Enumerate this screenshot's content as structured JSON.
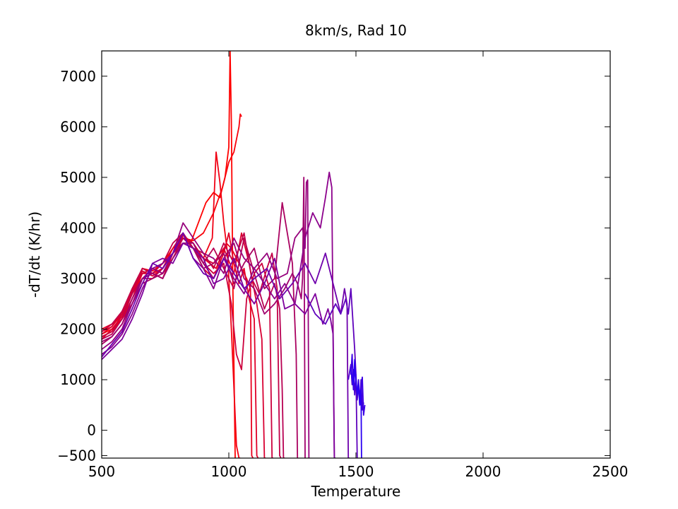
{
  "chart_data": {
    "type": "line",
    "title": "8km/s, Rad 10",
    "xlabel": "Temperature",
    "ylabel": "-dT/dt (K/hr)",
    "xlim": [
      500,
      2500
    ],
    "ylim": [
      -1000,
      7500
    ],
    "xticks": [
      "500",
      "1000",
      "1500",
      "2000",
      "2500"
    ],
    "yticks": [
      "−500",
      "0",
      "1000",
      "2000",
      "3000",
      "4000",
      "5000",
      "6000",
      "7000"
    ],
    "grid": false,
    "legend": "none",
    "colors": {
      "red_end": "#ff0000",
      "blue_end": "#2200ff",
      "axes": "#000000",
      "background": "#ffffff"
    },
    "series": [
      {
        "color": "#ff0000",
        "x": [
          500,
          540,
          580,
          620,
          660,
          700,
          740,
          780,
          820,
          850,
          880,
          910,
          940,
          965,
          985,
          1000,
          1005,
          1010,
          1015,
          1025
        ],
        "y": [
          1900,
          2000,
          2200,
          2600,
          3100,
          3200,
          3100,
          3500,
          3800,
          3700,
          4100,
          4500,
          4700,
          4600,
          5000,
          5600,
          7500,
          6100,
          3200,
          -1000
        ]
      },
      {
        "color": "#f8000a",
        "x": [
          500,
          540,
          580,
          620,
          660,
          700,
          740,
          780,
          820,
          860,
          900,
          940,
          975,
          1000,
          1020,
          1040,
          1045,
          1050
        ],
        "y": [
          1950,
          2050,
          2300,
          2700,
          3200,
          3150,
          3300,
          3600,
          3800,
          3750,
          3900,
          4300,
          4800,
          5300,
          5500,
          6000,
          6250,
          6200
        ]
      },
      {
        "color": "#f00014",
        "x": [
          500,
          540,
          580,
          620,
          660,
          700,
          740,
          780,
          820,
          860,
          900,
          935,
          950,
          965,
          980,
          995,
          1010,
          1030,
          1040,
          1045
        ],
        "y": [
          1850,
          1950,
          2200,
          2500,
          3000,
          3100,
          3000,
          3500,
          3700,
          3600,
          3400,
          3800,
          5500,
          4900,
          4100,
          3500,
          2000,
          -300,
          -800,
          -1000
        ]
      },
      {
        "color": "#e8001f",
        "x": [
          500,
          540,
          580,
          620,
          660,
          700,
          740,
          780,
          820,
          860,
          900,
          950,
          990,
          1010,
          1030,
          1050,
          1070,
          1085,
          1090,
          1095
        ],
        "y": [
          2000,
          2100,
          2300,
          2800,
          3200,
          3100,
          3200,
          3600,
          3900,
          3600,
          3400,
          3200,
          3700,
          3600,
          3400,
          3200,
          3000,
          2800,
          -500,
          -1000
        ]
      },
      {
        "color": "#e00028",
        "x": [
          500,
          540,
          580,
          620,
          660,
          700,
          740,
          780,
          820,
          860,
          900,
          940,
          980,
          1000,
          1020,
          1040,
          1060,
          1080,
          1100,
          1110,
          1115
        ],
        "y": [
          1800,
          2000,
          2250,
          2700,
          3100,
          3100,
          3000,
          3500,
          3700,
          3600,
          3200,
          3000,
          3500,
          3900,
          3300,
          2900,
          3200,
          2600,
          2200,
          -500,
          -1000
        ]
      },
      {
        "color": "#d80032",
        "x": [
          500,
          540,
          580,
          620,
          660,
          700,
          740,
          780,
          820,
          860,
          900,
          940,
          980,
          1020,
          1050,
          1080,
          1110,
          1130,
          1140,
          1145
        ],
        "y": [
          1900,
          2050,
          2350,
          2750,
          3150,
          3050,
          3200,
          3500,
          3850,
          3700,
          3400,
          3300,
          3600,
          3100,
          3900,
          3300,
          2500,
          1800,
          -800,
          -1000
        ]
      },
      {
        "color": "#cc003d",
        "x": [
          500,
          540,
          580,
          620,
          660,
          700,
          740,
          780,
          820,
          860,
          900,
          940,
          980,
          1010,
          1030,
          1050,
          1070,
          1100,
          1130,
          1160,
          1170,
          1175
        ],
        "y": [
          1850,
          1950,
          2300,
          2800,
          3100,
          3200,
          3100,
          3400,
          3800,
          3700,
          3300,
          3100,
          3300,
          2500,
          1500,
          1200,
          2600,
          3100,
          3300,
          2800,
          -700,
          -1000
        ]
      },
      {
        "color": "#c20047",
        "x": [
          500,
          540,
          580,
          620,
          660,
          700,
          740,
          780,
          820,
          860,
          900,
          940,
          980,
          1020,
          1060,
          1090,
          1120,
          1150,
          1170,
          1190,
          1200,
          1205
        ],
        "y": [
          1950,
          2100,
          2350,
          2800,
          3200,
          3100,
          3300,
          3700,
          3900,
          3600,
          3500,
          3200,
          3700,
          3300,
          3900,
          3000,
          2700,
          3200,
          3500,
          2800,
          -500,
          -1000
        ]
      },
      {
        "color": "#b80052",
        "x": [
          500,
          540,
          580,
          620,
          660,
          700,
          740,
          780,
          820,
          860,
          900,
          940,
          980,
          1020,
          1060,
          1100,
          1140,
          1180,
          1200,
          1210,
          1215,
          1220
        ],
        "y": [
          1800,
          1900,
          2200,
          2700,
          3000,
          3000,
          3200,
          3500,
          3800,
          3600,
          3300,
          3600,
          3200,
          2800,
          3800,
          3100,
          2400,
          2900,
          2400,
          800,
          -800,
          -1000
        ]
      },
      {
        "color": "#aa0060",
        "x": [
          500,
          540,
          580,
          620,
          660,
          700,
          740,
          780,
          820,
          860,
          900,
          940,
          980,
          1020,
          1060,
          1100,
          1140,
          1180,
          1210,
          1230,
          1250,
          1265,
          1270
        ],
        "y": [
          1700,
          1850,
          2100,
          2500,
          2900,
          3000,
          3100,
          3500,
          3700,
          3600,
          3200,
          3300,
          3500,
          2900,
          3300,
          3600,
          2800,
          3000,
          4500,
          3900,
          3300,
          1500,
          -1000
        ]
      },
      {
        "color": "#a0006e",
        "x": [
          500,
          540,
          580,
          620,
          660,
          700,
          740,
          780,
          820,
          860,
          900,
          940,
          980,
          1020,
          1060,
          1100,
          1140,
          1180,
          1220,
          1250,
          1270,
          1285,
          1290,
          1295,
          1300
        ],
        "y": [
          1750,
          1850,
          2100,
          2600,
          3000,
          3100,
          3000,
          3400,
          3700,
          3700,
          3300,
          3000,
          3400,
          3700,
          3000,
          2800,
          2300,
          2500,
          2800,
          3100,
          2900,
          2600,
          3000,
          5000,
          -1000
        ]
      },
      {
        "color": "#96007c",
        "x": [
          500,
          540,
          580,
          620,
          660,
          700,
          740,
          780,
          820,
          860,
          900,
          940,
          980,
          1020,
          1060,
          1100,
          1150,
          1190,
          1230,
          1260,
          1290,
          1300,
          1305,
          1310,
          1315
        ],
        "y": [
          1600,
          1750,
          2000,
          2500,
          3000,
          3200,
          3100,
          3500,
          4100,
          3800,
          3500,
          3400,
          3100,
          3800,
          3400,
          3200,
          3500,
          3000,
          3100,
          3800,
          4000,
          3600,
          4900,
          4950,
          -1000
        ]
      },
      {
        "color": "#8c008c",
        "x": [
          500,
          540,
          580,
          620,
          660,
          700,
          740,
          780,
          820,
          860,
          900,
          940,
          980,
          1020,
          1060,
          1100,
          1140,
          1180,
          1220,
          1260,
          1300,
          1330,
          1360,
          1380,
          1395,
          1405,
          1410,
          1415
        ],
        "y": [
          1500,
          1650,
          1900,
          2300,
          2800,
          3200,
          3300,
          3500,
          3900,
          3400,
          3200,
          2800,
          3400,
          3000,
          2700,
          3200,
          2900,
          2600,
          2900,
          2500,
          3800,
          4300,
          4000,
          4600,
          5100,
          4800,
          2000,
          -1000
        ]
      },
      {
        "color": "#7e009c",
        "x": [
          500,
          540,
          580,
          620,
          660,
          700,
          740,
          780,
          820,
          860,
          900,
          940,
          980,
          1020,
          1060,
          1100,
          1140,
          1180,
          1220,
          1260,
          1300,
          1340,
          1370,
          1390,
          1400,
          1410,
          1415,
          1420
        ],
        "y": [
          1400,
          1600,
          1800,
          2200,
          2700,
          3300,
          3400,
          3300,
          3700,
          3600,
          3400,
          2900,
          3000,
          3400,
          2800,
          2500,
          2900,
          3400,
          2400,
          2500,
          2300,
          2700,
          2100,
          2400,
          2200,
          1900,
          -800,
          -1000
        ]
      },
      {
        "color": "#6e00ac",
        "x": [
          500,
          540,
          580,
          620,
          660,
          700,
          740,
          780,
          820,
          860,
          900,
          940,
          980,
          1020,
          1060,
          1100,
          1150,
          1200,
          1250,
          1300,
          1340,
          1380,
          1410,
          1440,
          1455,
          1465,
          1470,
          1475
        ],
        "y": [
          1450,
          1700,
          1950,
          2400,
          2900,
          3300,
          3200,
          3500,
          3900,
          3400,
          3100,
          3000,
          3400,
          3100,
          2800,
          3000,
          3200,
          2600,
          2900,
          3300,
          2900,
          3500,
          2900,
          2300,
          2800,
          2500,
          -700,
          -1000
        ]
      },
      {
        "color": "#5e00bc",
        "x": [
          1300,
          1340,
          1380,
          1420,
          1440,
          1460,
          1470,
          1480,
          1485,
          1490,
          1495,
          1500,
          1505
        ],
        "y": [
          2700,
          2300,
          2100,
          2500,
          2300,
          2600,
          2300,
          2800,
          2400,
          2000,
          1600,
          1100,
          -1000
        ]
      },
      {
        "color": "#4a00d2",
        "x": [
          1470,
          1480,
          1485,
          1490,
          1495,
          1500,
          1505,
          1510,
          1515,
          1520,
          1525,
          1530
        ],
        "y": [
          1000,
          1300,
          900,
          1200,
          700,
          1100,
          600,
          900,
          500,
          1000,
          400,
          550
        ]
      },
      {
        "color": "#3a00e4",
        "x": [
          1480,
          1485,
          1490,
          1495,
          1500,
          1505,
          1510,
          1515,
          1520,
          1525,
          1530,
          1535
        ],
        "y": [
          1100,
          1500,
          800,
          1300,
          900,
          700,
          1000,
          600,
          850,
          1050,
          300,
          500
        ]
      },
      {
        "color": "#2a00f2",
        "x": [
          1480,
          1490,
          1495,
          1500,
          1505,
          1510,
          1515,
          1520,
          1522,
          1525
        ],
        "y": [
          1200,
          900,
          1400,
          1000,
          700,
          900,
          500,
          800,
          -600,
          -1000
        ]
      }
    ]
  }
}
